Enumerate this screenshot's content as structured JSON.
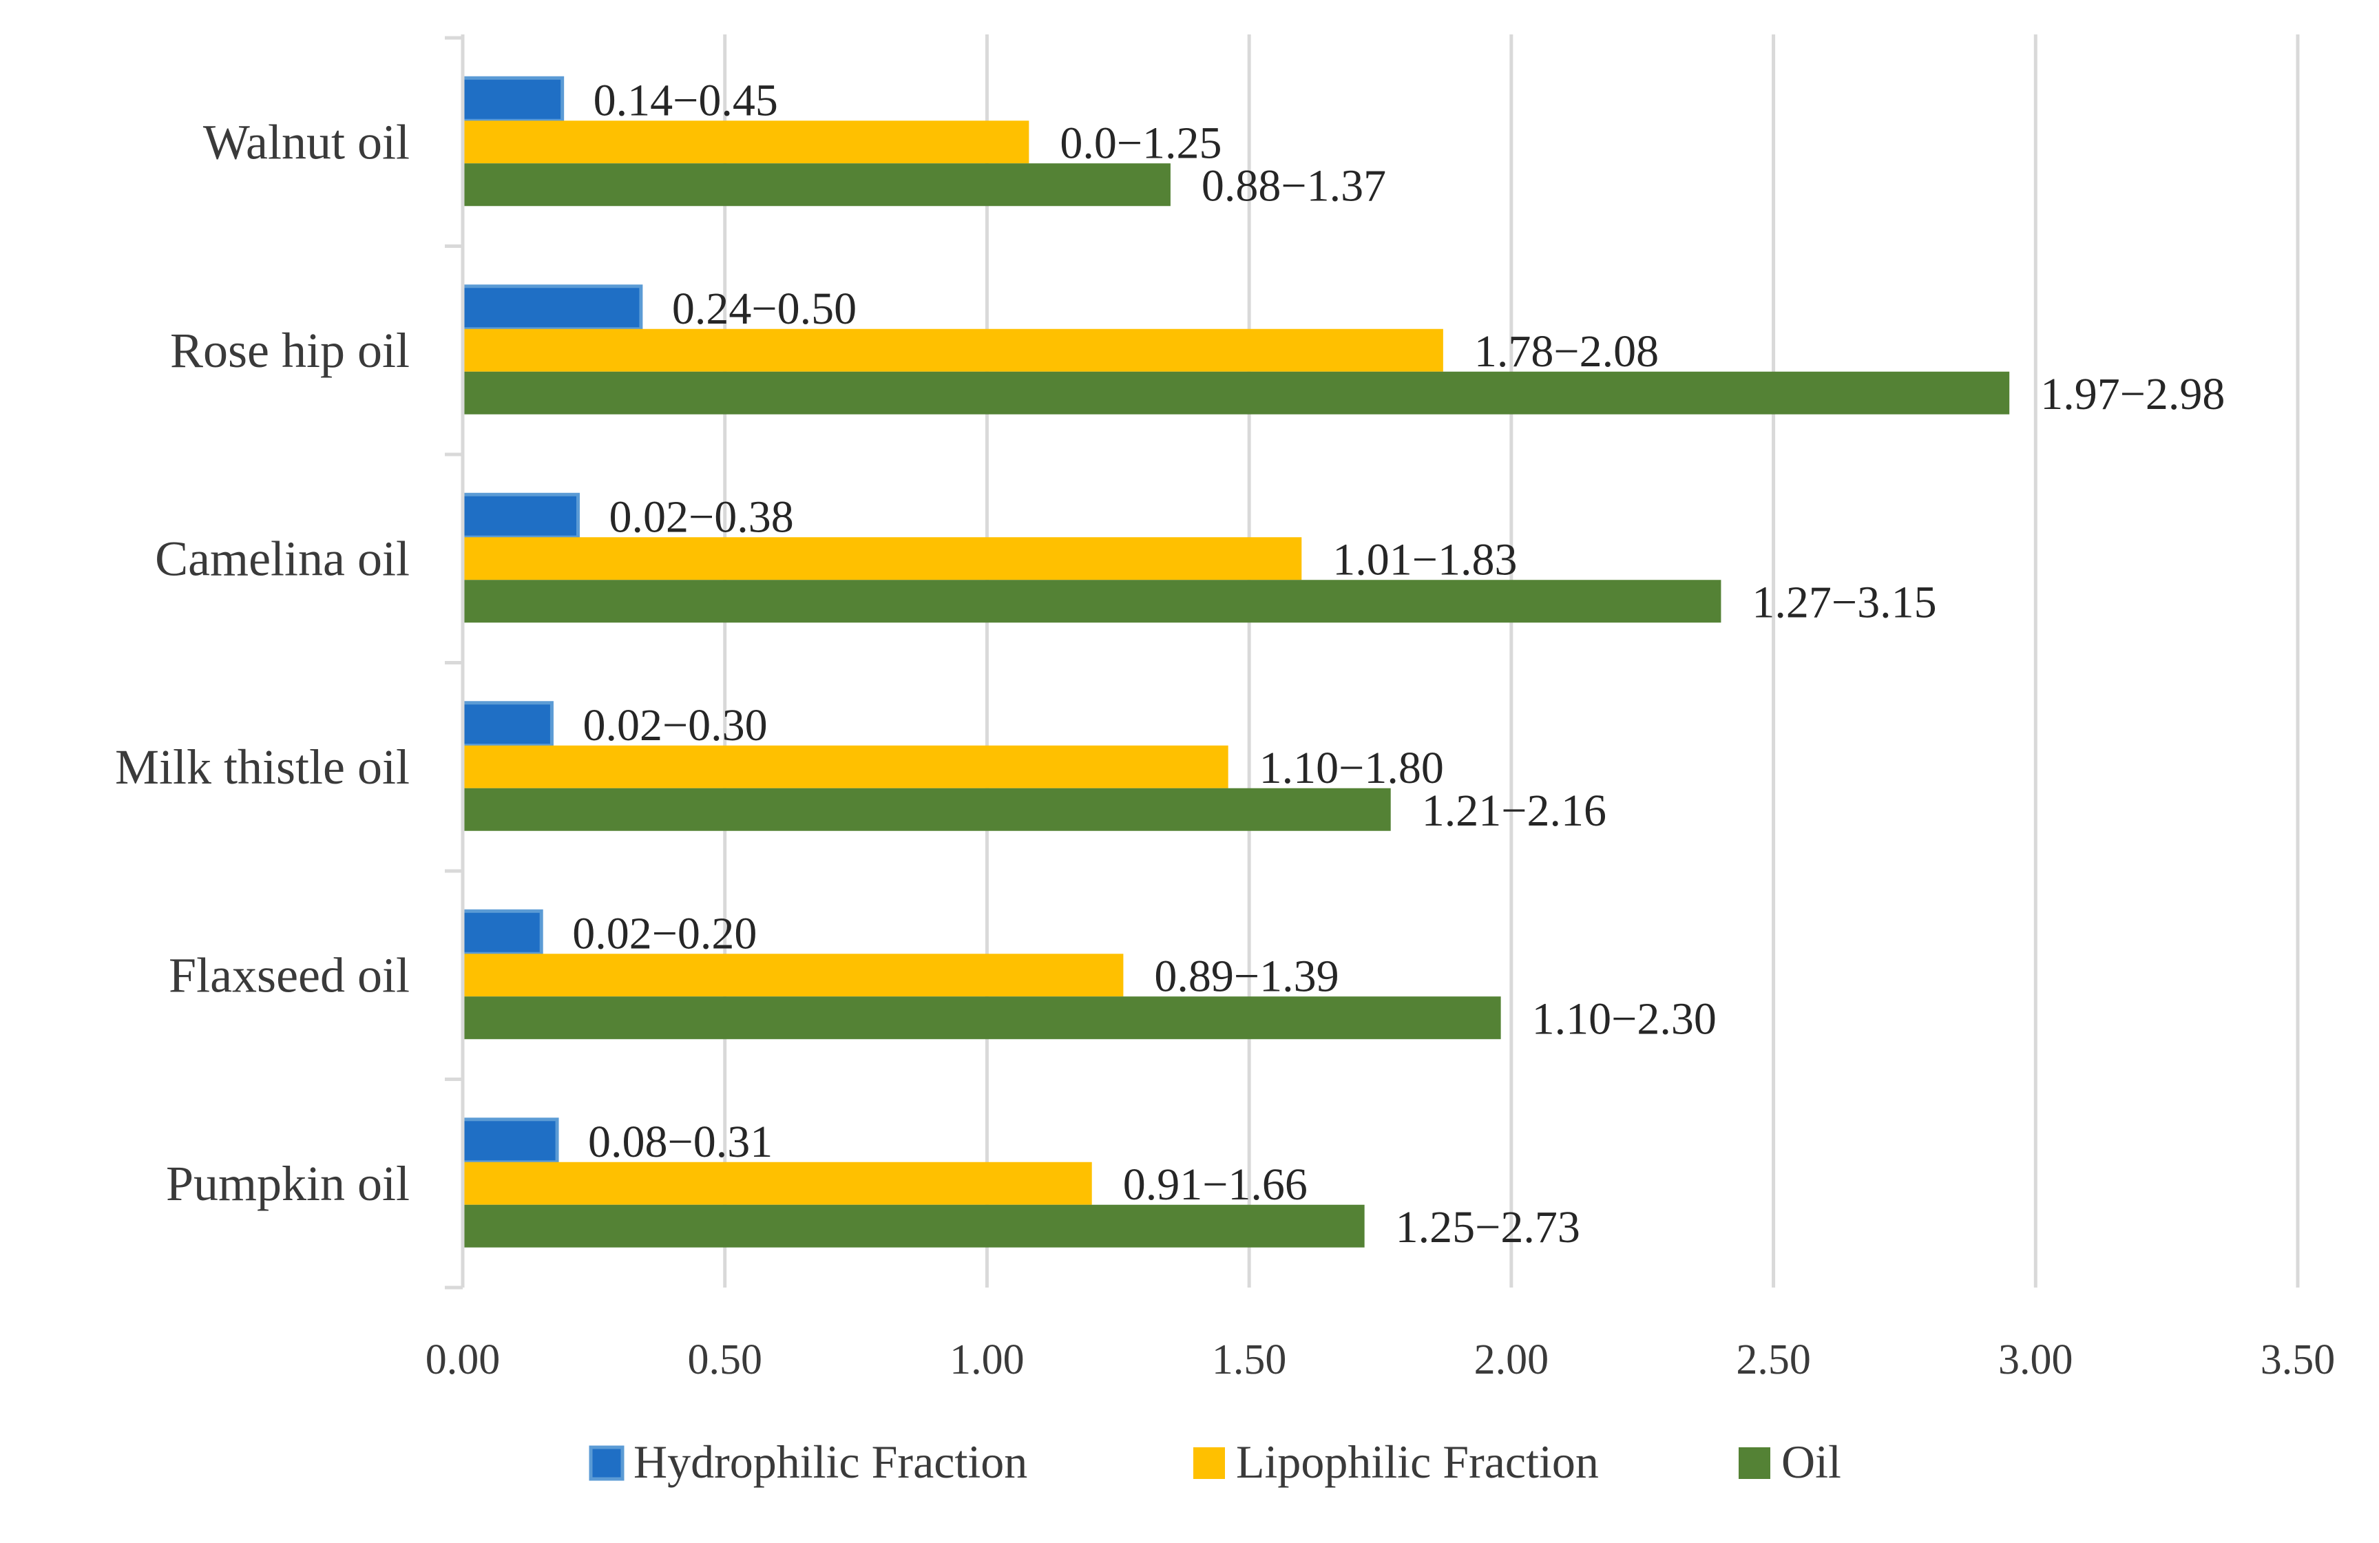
{
  "chart_data": {
    "type": "bar",
    "orientation": "horizontal",
    "title": "",
    "xlabel": "",
    "ylabel": "",
    "xlim": [
      0,
      3.5
    ],
    "xticks": [
      0.0,
      0.5,
      1.0,
      1.5,
      2.0,
      2.5,
      3.0,
      3.5
    ],
    "xtick_labels": [
      "0.00",
      "0.50",
      "1.00",
      "1.50",
      "2.00",
      "2.50",
      "3.00",
      "3.50"
    ],
    "grid": "vertical",
    "legend_position": "bottom",
    "categories": [
      "Walnut oil",
      "Rose hip oil",
      "Camelina oil",
      "Milk thistle oil",
      "Flaxseed oil",
      "Pumpkin oil"
    ],
    "series": [
      {
        "name": "Hydrophilic Fraction",
        "color": "#1F6FC5",
        "values": [
          0.19,
          0.34,
          0.22,
          0.17,
          0.15,
          0.18
        ],
        "labels": [
          "0.14−0.45",
          "0.24−0.50",
          "0.02−0.38",
          "0.02−0.30",
          "0.02−0.20",
          "0.08−0.31"
        ]
      },
      {
        "name": "Lipophilic Fraction",
        "color": "#FFC000",
        "values": [
          1.08,
          1.87,
          1.6,
          1.46,
          1.26,
          1.2
        ],
        "labels": [
          "0.0−1.25",
          "1.78−2.08",
          "1.01−1.83",
          "1.10−1.80",
          "0.89−1.39",
          "0.91−1.66"
        ]
      },
      {
        "name": "Oil",
        "color": "#548235",
        "values": [
          1.35,
          2.95,
          2.4,
          1.77,
          1.98,
          1.72
        ],
        "labels": [
          "0.88−1.37",
          "1.97−2.98",
          "1.27−3.15",
          "1.21−2.16",
          "1.10−2.30",
          "1.25−2.73"
        ]
      }
    ]
  }
}
